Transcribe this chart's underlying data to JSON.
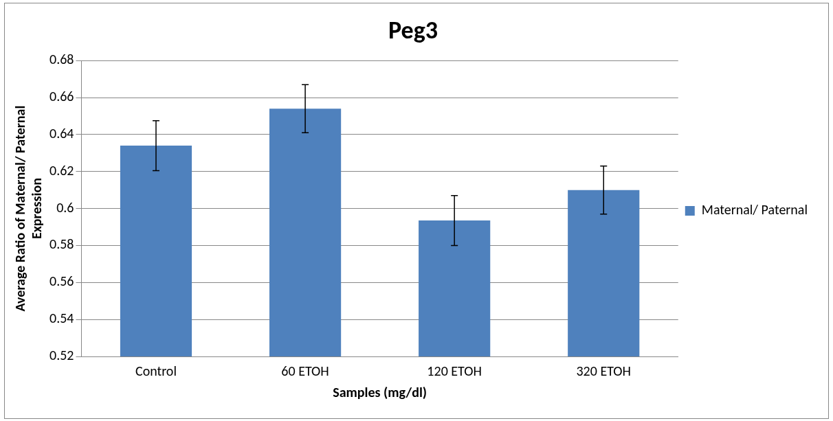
{
  "chart_data": {
    "type": "bar",
    "title": "Peg3",
    "xlabel": "Samples (mg/dl)",
    "ylabel": "Average Ratio of Maternal/ Paternal Expression",
    "categories": [
      "Control",
      "60 ETOH",
      "120 ETOH",
      "320 ETOH"
    ],
    "series": [
      {
        "name": "Maternal/ Paternal",
        "color": "#4f81bd",
        "values": [
          0.634,
          0.654,
          0.5935,
          0.61
        ],
        "errors": [
          0.0135,
          0.013,
          0.0135,
          0.013
        ]
      }
    ],
    "ylim": [
      0.52,
      0.68
    ],
    "yticks": [
      0.52,
      0.54,
      0.56,
      0.58,
      0.6,
      0.62,
      0.64,
      0.66,
      0.68
    ],
    "grid": "y",
    "legend": "right"
  }
}
